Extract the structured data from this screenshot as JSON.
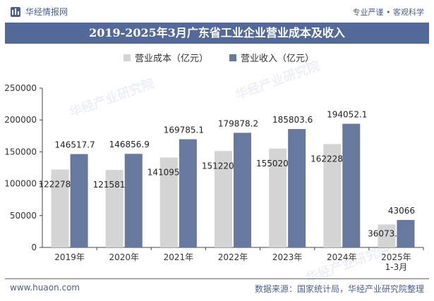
{
  "header": {
    "site_name": "华经情报网",
    "tagline": "专业严谨 • 客观科学"
  },
  "colors": {
    "series_cost": "#d4d4d4",
    "series_revenue": "#67799f",
    "title_bg": "#53699a"
  },
  "footer": {
    "website": "www.huaon.com",
    "source": "数据来源：国家统计局，华经产业研究院整理"
  },
  "watermark": "华经产业研究院",
  "chart_data": {
    "type": "bar",
    "title": "2019-2025年3月广东省工业企业营业成本及收入",
    "categories": [
      "2019年",
      "2020年",
      "2021年",
      "2022年",
      "2023年",
      "2024年",
      "2025年\n1-3月"
    ],
    "series": [
      {
        "name": "营业成本（亿元）",
        "values": [
          122278.5,
          121581.9,
          141095.1,
          151220.7,
          155020.6,
          162228.8,
          36073.4
        ],
        "labels": [
          "122278.5",
          "121581.9",
          "141095.1",
          "151220.7",
          "155020.6",
          "162228.8",
          "36073.4"
        ]
      },
      {
        "name": "营业收入（亿元）",
        "values": [
          146517.7,
          146856.9,
          169785.1,
          179878.2,
          185803.6,
          194052.1,
          43066
        ],
        "labels": [
          "146517.7",
          "146856.9",
          "169785.1",
          "179878.2",
          "185803.6",
          "194052.1",
          "43066"
        ]
      }
    ],
    "ylim": [
      0,
      250000
    ],
    "yticks": [
      "0",
      "50000",
      "100000",
      "150000",
      "200000",
      "250000"
    ],
    "legend_position": "top",
    "grid": false
  }
}
